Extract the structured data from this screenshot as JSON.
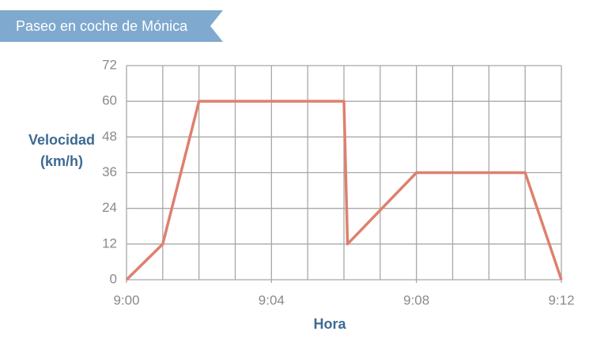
{
  "chart_data": {
    "type": "line",
    "title": "Paseo en coche de Mónica",
    "xlabel": "Hora",
    "ylabel": [
      "Velocidad",
      "(km/h)"
    ],
    "x": [
      0,
      1,
      2,
      6,
      6.1,
      8,
      11,
      12
    ],
    "values": [
      0,
      12,
      60,
      60,
      12,
      36,
      36,
      0
    ],
    "color": "#de806e",
    "xlim": [
      0,
      12
    ],
    "xticks": [
      {
        "value": 0,
        "label": "9:00"
      },
      {
        "value": 4,
        "label": "9:04"
      },
      {
        "value": 8,
        "label": "9:08"
      },
      {
        "value": 12,
        "label": "9:12"
      }
    ],
    "x_grid_step": 1,
    "ylim": [
      0,
      72
    ],
    "yticks": [
      0,
      12,
      24,
      36,
      48,
      60,
      72
    ],
    "grid": true
  }
}
